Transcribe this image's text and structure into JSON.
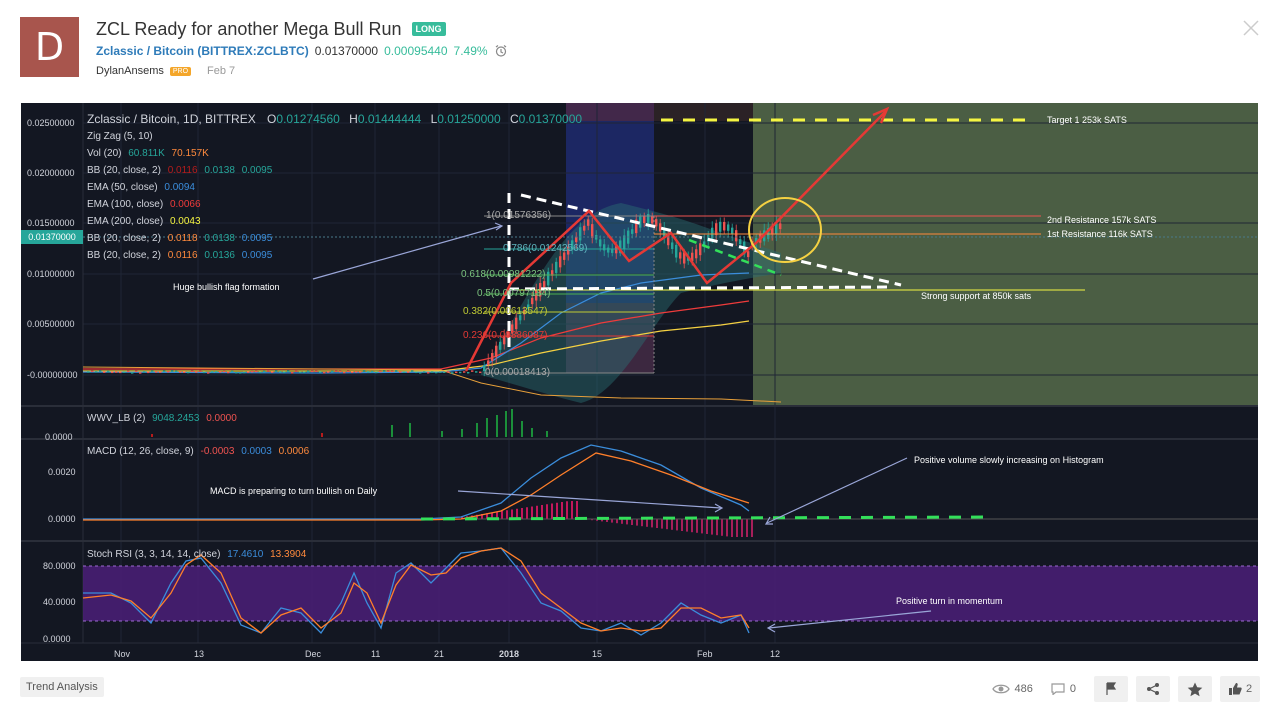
{
  "header": {
    "avatar_letter": "D",
    "title": "ZCL Ready for another Mega Bull Run",
    "direction_badge": "LONG",
    "symbol_name": "Zclassic / Bitcoin",
    "symbol_exchange": "(BITTREX:ZCLBTC)",
    "price": "0.01370000",
    "change_abs": "0.00095440",
    "change_pct": "7.49%",
    "author": "DylanAnsems",
    "author_badge": "PRO",
    "date": "Feb 7"
  },
  "chart": {
    "legend_title": "Zclassic / Bitcoin, 1D, BITTREX",
    "ohlc": {
      "o_label": "O",
      "o": "0.01274560",
      "h_label": "H",
      "h": "0.01444444",
      "l_label": "L",
      "l": "0.01250000",
      "c_label": "C",
      "c": "0.01370000"
    },
    "indicators": [
      {
        "label": "Zig Zag (5, 10)",
        "values": []
      },
      {
        "label": "Vol (20)",
        "values": [
          "60.811K",
          "70.157K"
        ]
      },
      {
        "label": "BB (20, close, 2)",
        "values": [
          "0.0116",
          "0.0138",
          "0.0095"
        ]
      },
      {
        "label": "EMA (50, close)",
        "values": [
          "0.0094"
        ]
      },
      {
        "label": "EMA (100, close)",
        "values": [
          "0.0066"
        ]
      },
      {
        "label": "EMA (200, close)",
        "values": [
          "0.0043"
        ]
      },
      {
        "label": "BB (20, close, 2)",
        "values": [
          "0.0118",
          "0.0138",
          "0.0095"
        ]
      },
      {
        "label": "BB (20, close, 2)",
        "values": [
          "0.0116",
          "0.0136",
          "0.0095"
        ]
      }
    ],
    "price_axis": [
      "0.02500000",
      "0.02000000",
      "0.01500000",
      "0.01000000",
      "0.00500000",
      "-0.00000000"
    ],
    "last_price_tag": "0.01370000",
    "fib_levels": [
      "1(0.01576356)",
      "0.786(0.01242569)",
      "0.618(0.00981222)",
      "0.5(0.00797184)",
      "0.382(0.00613547)",
      "0.236(0.00386087)",
      "0(0.00018413)"
    ],
    "annotations": {
      "target": "Target 1 253k SATS",
      "res2": "2nd Resistance 157k SATS",
      "res1": "1st Resistance 116k SATS",
      "support": "Strong support at 850k sats",
      "flag": "Huge bullish flag formation",
      "macd_note": "MACD is preparing to turn bullish on Daily",
      "hist_note": "Positive volume slowly increasing on Histogram",
      "momentum_note": "Positive turn in momentum"
    },
    "wwv": {
      "label": "WWV_LB (2)",
      "v1": "9048.2453",
      "v2": "0.0000",
      "axis": "0.0000"
    },
    "macd": {
      "label": "MACD (12, 26, close, 9)",
      "v1": "-0.0003",
      "v2": "0.0003",
      "v3": "0.0006",
      "axis": [
        "0.0020",
        "0.0000"
      ]
    },
    "stoch": {
      "label": "Stoch RSI (3, 3, 14, 14, close)",
      "v1": "17.4610",
      "v2": "13.3904",
      "axis": [
        "80.0000",
        "40.0000",
        "0.0000"
      ]
    },
    "time_axis": [
      "Nov",
      "13",
      "Dec",
      "11",
      "21",
      "2018",
      "15",
      "Feb",
      "12"
    ]
  },
  "footer": {
    "tag": "Trend Analysis",
    "views": "486",
    "comments": "0",
    "likes": "2"
  },
  "colors": {
    "chart_bg": "#131722",
    "green": "#26a69a",
    "red": "#ef5350",
    "accent_teal": "#37bc9b",
    "link": "#2e7bb9"
  }
}
